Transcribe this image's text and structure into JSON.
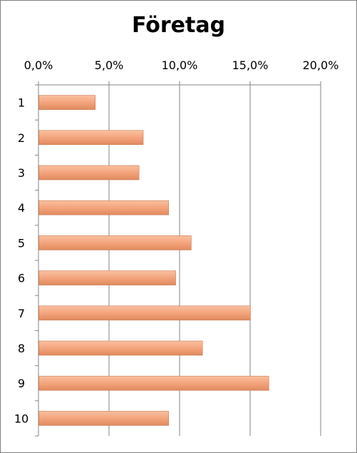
{
  "chart_data": {
    "type": "bar",
    "orientation": "horizontal",
    "title": "Företag",
    "categories": [
      "1",
      "2",
      "3",
      "4",
      "5",
      "6",
      "7",
      "8",
      "9",
      "10"
    ],
    "values": [
      4.0,
      7.4,
      7.1,
      9.2,
      10.8,
      9.7,
      15.0,
      11.6,
      16.3,
      9.2
    ],
    "value_unit": "%",
    "xlim": [
      0,
      20
    ],
    "x_ticks": [
      "0,0%",
      "5,0%",
      "10,0%",
      "15,0%",
      "20,0%"
    ],
    "x_axis_position": "top",
    "grid": true,
    "bar_color": "#f4a47c",
    "bar_edge_color": "#c87850"
  }
}
